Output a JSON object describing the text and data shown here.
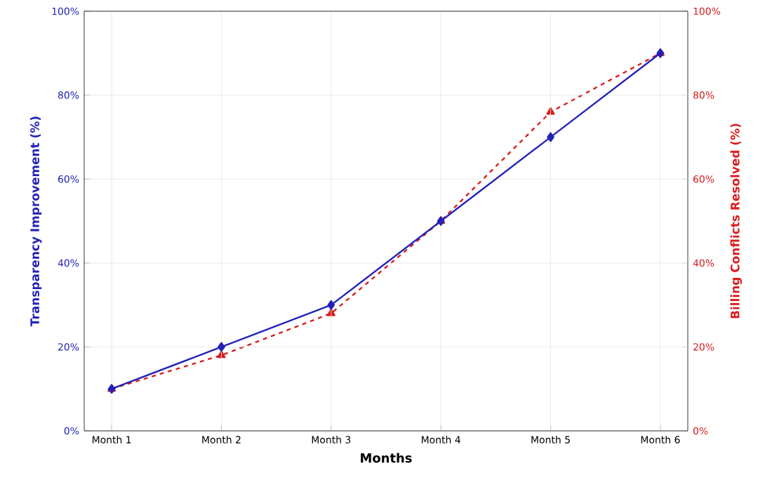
{
  "chart_data": {
    "type": "line",
    "xlabel": "Months",
    "ylabel": "Transparency Improvement (%)",
    "y2label": "Billing Conflicts Resolved (%)",
    "categories": [
      "Month 1",
      "Month 2",
      "Month 3",
      "Month 4",
      "Month 5",
      "Month 6"
    ],
    "series": [
      {
        "color": "#2323b8",
        "marker": "diamond",
        "line_style": "solid",
        "values": [
          10,
          20,
          30,
          50,
          70,
          90
        ]
      },
      {
        "color": "#d91e1e",
        "marker": "triangle",
        "line_style": "dashed",
        "axis": "y2",
        "values": [
          10,
          18,
          28,
          50,
          76,
          90
        ]
      }
    ],
    "ylim": [
      0,
      100
    ],
    "yticks": [
      {
        "value": 0,
        "label": "0%"
      },
      {
        "value": 20,
        "label": "20%"
      },
      {
        "value": 40,
        "label": "40%"
      },
      {
        "value": 60,
        "label": "60%"
      },
      {
        "value": 80,
        "label": "80%"
      },
      {
        "value": 100,
        "label": "100%"
      }
    ],
    "y2lim": [
      0,
      100
    ],
    "y2ticks": [
      {
        "value": 0,
        "label": "0%"
      },
      {
        "value": 20,
        "label": "20%"
      },
      {
        "value": 40,
        "label": "40%"
      },
      {
        "value": 60,
        "label": "60%"
      },
      {
        "value": 80,
        "label": "80%"
      },
      {
        "value": 100,
        "label": "100%"
      }
    ],
    "grid": true
  }
}
